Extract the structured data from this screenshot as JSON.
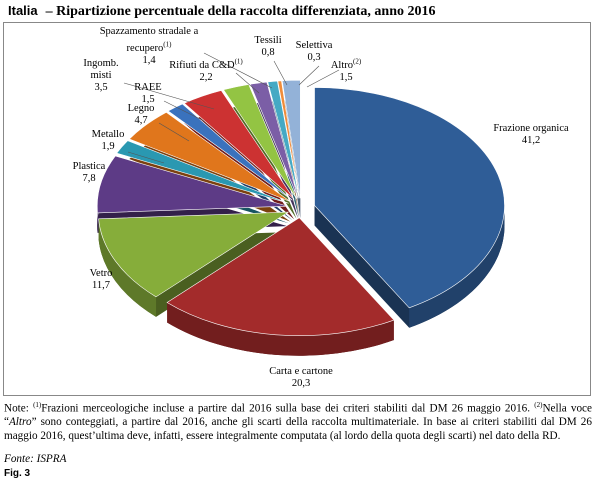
{
  "chart_data": {
    "type": "pie",
    "region": "Italia",
    "title": "– Ripartizione percentuale della raccolta differenziata, anno 2016",
    "categories": [
      "Frazione organica",
      "Carta e cartone",
      "Vetro",
      "Plastica",
      "Metallo",
      "Legno",
      "RAEE",
      "Ingomb. misti",
      "Rifiuti da C&D",
      "Spazzamento stradale a recupero",
      "Tessili",
      "Selettiva",
      "Altro"
    ],
    "category_notes": [
      null,
      null,
      null,
      null,
      null,
      null,
      null,
      null,
      "(1)",
      "(1)",
      null,
      null,
      "(2)"
    ],
    "values": [
      41.2,
      20.3,
      11.7,
      7.8,
      1.9,
      4.7,
      1.5,
      3.5,
      2.2,
      1.4,
      0.8,
      0.3,
      1.5
    ],
    "value_labels": [
      "41,2",
      "20,3",
      "11,7",
      "7,8",
      "1,9",
      "4,7",
      "1,5",
      "3,5",
      "2,2",
      "1,4",
      "0,8",
      "0,3",
      "1,5"
    ],
    "colors": [
      "#2f5d97",
      "#a32b2b",
      "#86ad3a",
      "#5d3b86",
      "#2a98b1",
      "#e0761c",
      "#3a72bd",
      "#cc3232",
      "#93c443",
      "#7b5ea6",
      "#45a9c4",
      "#f08c3a",
      "#93b2d8"
    ]
  },
  "note": [
    "Note: ",
    "(1)",
    "Frazioni merceologiche incluse a partire dal 2016 sulla base dei criteri stabiliti dal DM 26 maggio 2016. ",
    "(2)",
    "Nella voce “",
    "Altro",
    "” sono conteggiati, a partire dal 2016, anche gli scarti della raccolta multimateriale. In base ai criteri stabiliti dal DM 26 maggio 2016, quest’ultima deve, infatti, essere integralmente computata (al lordo della quota degli scarti) nel dato della RD."
  ],
  "source": "Fonte: ISPRA",
  "figure": "Fig. 3"
}
